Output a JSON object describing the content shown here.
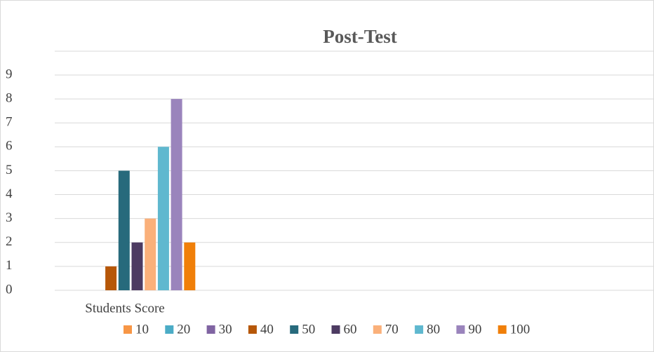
{
  "chart_data": {
    "type": "bar",
    "title": "Post-Test",
    "categories": [
      "Students Score"
    ],
    "series": [
      {
        "name": "10",
        "color": "#f79646",
        "values": [
          0
        ]
      },
      {
        "name": "20",
        "color": "#4bacc6",
        "values": [
          0
        ]
      },
      {
        "name": "30",
        "color": "#8064a2",
        "values": [
          0
        ]
      },
      {
        "name": "40",
        "color": "#b65708",
        "values": [
          1
        ]
      },
      {
        "name": "50",
        "color": "#276a7c",
        "values": [
          5
        ]
      },
      {
        "name": "60",
        "color": "#4d3b62",
        "values": [
          2
        ]
      },
      {
        "name": "70",
        "color": "#fab07a",
        "values": [
          3
        ]
      },
      {
        "name": "80",
        "color": "#5fb8cf",
        "values": [
          6
        ]
      },
      {
        "name": "90",
        "color": "#9a84bc",
        "values": [
          8
        ]
      },
      {
        "name": "100",
        "color": "#f07f09",
        "values": [
          2
        ]
      }
    ],
    "ylim": [
      0,
      9
    ],
    "yticks": [
      0,
      1,
      2,
      3,
      4,
      5,
      6,
      7,
      8,
      9
    ],
    "grid": true,
    "legend": "bottom"
  }
}
